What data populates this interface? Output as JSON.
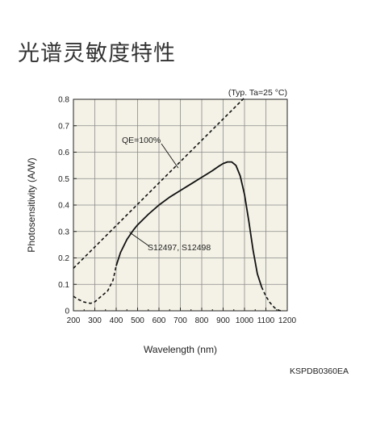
{
  "page": {
    "title": "光谱灵敏度特性"
  },
  "chart_data": {
    "type": "line",
    "title": "光谱灵敏度特性",
    "xlabel": "Wavelength (nm)",
    "ylabel": "Photosensitivity (A/W)",
    "xlim": [
      200,
      1200
    ],
    "ylim": [
      0,
      0.8
    ],
    "x_ticks": [
      200,
      300,
      400,
      500,
      600,
      700,
      800,
      900,
      1000,
      1100,
      1200
    ],
    "y_ticks": [
      0,
      0.1,
      0.2,
      0.3,
      0.4,
      0.5,
      0.6,
      0.7,
      0.8
    ],
    "x_tick_labels": [
      "200",
      "300",
      "400",
      "500",
      "600",
      "700",
      "800",
      "900",
      "1000",
      "1100",
      "1200"
    ],
    "y_tick_labels": [
      "0",
      "0.1",
      "0.2",
      "0.3",
      "0.4",
      "0.5",
      "0.6",
      "0.7",
      "0.8"
    ],
    "grid": true,
    "background_color": "#f4f2e6",
    "condition_note": "(Typ. Ta=25 °C)",
    "footer_code": "KSPDB0360EA",
    "series": [
      {
        "label": "QE=100%",
        "style": "dashed",
        "points": [
          [
            200,
            0.161
          ],
          [
            1000,
            0.806
          ]
        ]
      },
      {
        "label": "S12497, S12498",
        "style": "solid",
        "points": [
          [
            400,
            0.17
          ],
          [
            420,
            0.22
          ],
          [
            450,
            0.27
          ],
          [
            480,
            0.305
          ],
          [
            500,
            0.325
          ],
          [
            550,
            0.365
          ],
          [
            600,
            0.4
          ],
          [
            650,
            0.43
          ],
          [
            700,
            0.455
          ],
          [
            750,
            0.48
          ],
          [
            800,
            0.505
          ],
          [
            850,
            0.53
          ],
          [
            880,
            0.547
          ],
          [
            900,
            0.557
          ],
          [
            920,
            0.563
          ],
          [
            940,
            0.563
          ],
          [
            960,
            0.55
          ],
          [
            980,
            0.51
          ],
          [
            1000,
            0.44
          ],
          [
            1020,
            0.34
          ],
          [
            1040,
            0.23
          ],
          [
            1060,
            0.14
          ],
          [
            1080,
            0.09
          ]
        ],
        "dashed_segments": [
          [
            [
              200,
              0.055
            ],
            [
              220,
              0.044
            ],
            [
              250,
              0.033
            ],
            [
              280,
              0.028
            ],
            [
              300,
              0.034
            ],
            [
              330,
              0.055
            ],
            [
              360,
              0.075
            ],
            [
              385,
              0.115
            ],
            [
              400,
              0.17
            ]
          ],
          [
            [
              1080,
              0.09
            ],
            [
              1100,
              0.055
            ],
            [
              1120,
              0.03
            ],
            [
              1140,
              0.012
            ],
            [
              1160,
              0.002
            ],
            [
              1170,
              0.0
            ]
          ]
        ]
      }
    ],
    "annotations": [
      {
        "text": "QE=100%",
        "points_to": [
          690,
          0.54
        ]
      },
      {
        "text": "S12497, S12498",
        "points_to": [
          500,
          0.3
        ]
      }
    ]
  }
}
